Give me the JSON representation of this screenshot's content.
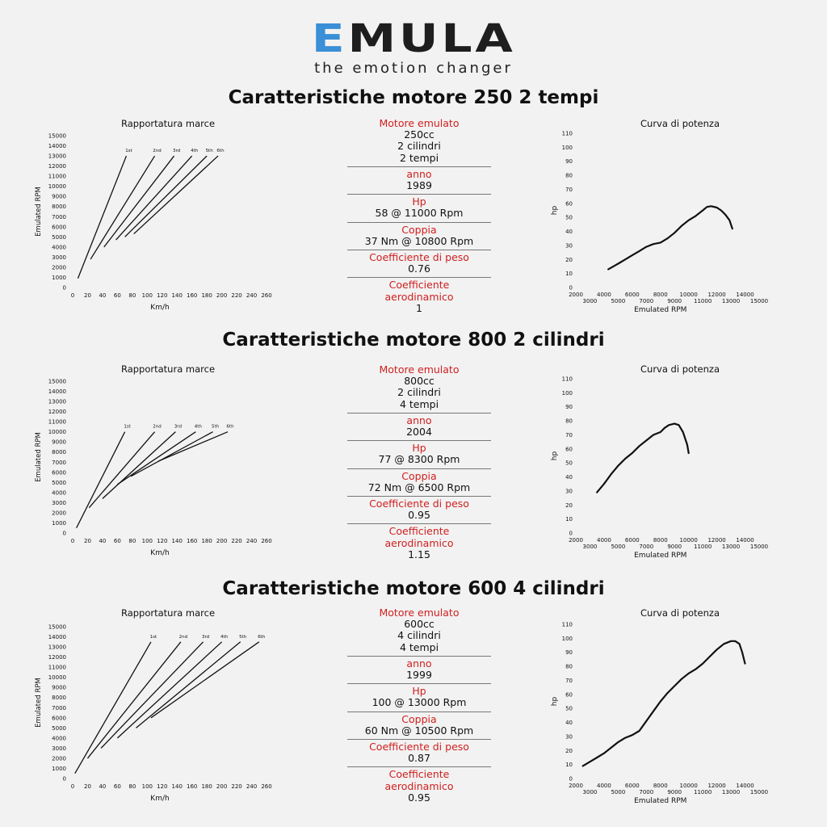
{
  "logo": {
    "brand_e": "E",
    "brand_rest": "MULA",
    "tagline": "the emotion changer"
  },
  "sections": [
    {
      "title": "Caratteristiche motore 250 2 tempi",
      "specs": {
        "motore_label": "Motore emulato",
        "cc": "250cc",
        "cilindri": "2 cilindri",
        "tempi": "2 tempi",
        "anno_label": "anno",
        "anno": "1989",
        "hp_label": "Hp",
        "hp": "58 @ 11000 Rpm",
        "coppia_label": "Coppia",
        "coppia": "37 Nm @ 10800 Rpm",
        "peso_label": "Coefficiente di peso",
        "peso": "0.76",
        "aero_label1": "Coefficiente",
        "aero_label2": "aerodinamico",
        "aero": "1"
      }
    },
    {
      "title": "Caratteristiche motore 800 2 cilindri",
      "specs": {
        "motore_label": "Motore emulato",
        "cc": "800cc",
        "cilindri": "2 cilindri",
        "tempi": "4 tempi",
        "anno_label": "anno",
        "anno": "2004",
        "hp_label": "Hp",
        "hp": "77 @ 8300 Rpm",
        "coppia_label": "Coppia",
        "coppia": "72 Nm @ 6500 Rpm",
        "peso_label": "Coefficiente di peso",
        "peso": "0.95",
        "aero_label1": "Coefficiente",
        "aero_label2": "aerodinamico",
        "aero": "1.15"
      }
    },
    {
      "title": "Caratteristiche motore 600 4 cilindri",
      "specs": {
        "motore_label": "Motore emulato",
        "cc": "600cc",
        "cilindri": "4 cilindri",
        "tempi": "4 tempi",
        "anno_label": "anno",
        "anno": "1999",
        "hp_label": "Hp",
        "hp": "100 @ 13000 Rpm",
        "coppia_label": "Coppia",
        "coppia": "60 Nm @ 10500 Rpm",
        "peso_label": "Coefficiente di peso",
        "peso": "0.87",
        "aero_label1": "Coefficiente",
        "aero_label2": "aerodinamico",
        "aero": "0.95"
      }
    }
  ],
  "colors": {
    "brand_blue": "#3a8fd6",
    "label_red": "#d01f1f",
    "line": "#111111"
  },
  "chart_data": [
    {
      "type": "line",
      "title": "Rapportatura marce",
      "xlabel": "Km/h",
      "ylabel": "Emulated RPM",
      "xlim": [
        0,
        260
      ],
      "ylim": [
        0,
        15000
      ],
      "xticks": [
        "0",
        "20",
        "40",
        "60",
        "80",
        "100",
        "120",
        "140",
        "160",
        "180",
        "200",
        "220",
        "240",
        "260"
      ],
      "yticks": [
        "0",
        "1000",
        "2000",
        "3000",
        "4000",
        "5000",
        "6000",
        "7000",
        "8000",
        "9000",
        "10000",
        "11000",
        "12000",
        "13000",
        "14000",
        "15000"
      ],
      "series": [
        {
          "name": "1st",
          "points": [
            [
              7,
              900
            ],
            [
              72,
              13000
            ]
          ]
        },
        {
          "name": "2nd",
          "points": [
            [
              24,
              2800
            ],
            [
              110,
              13000
            ]
          ]
        },
        {
          "name": "3rd",
          "points": [
            [
              42,
              4000
            ],
            [
              136,
              13000
            ]
          ]
        },
        {
          "name": "4th",
          "points": [
            [
              58,
              4700
            ],
            [
              160,
              13000
            ]
          ]
        },
        {
          "name": "5th",
          "points": [
            [
              70,
              5000
            ],
            [
              180,
              13000
            ]
          ]
        },
        {
          "name": "6th",
          "points": [
            [
              82,
              5300
            ],
            [
              195,
              13000
            ]
          ]
        }
      ],
      "gear_labels": [
        "1st",
        "2nd",
        "3rd",
        "4th",
        "5th",
        "6th"
      ]
    },
    {
      "type": "line",
      "title": "Curva di potenza",
      "xlabel": "Emulated RPM",
      "ylabel": "hp",
      "xlim": [
        2000,
        15000
      ],
      "ylim": [
        0,
        110
      ],
      "xticks": [
        "2000",
        "3000",
        "4000",
        "5000",
        "6000",
        "7000",
        "8000",
        "9000",
        "10000",
        "11000",
        "12000",
        "13000",
        "14000",
        "15000"
      ],
      "yticks": [
        "0",
        "10",
        "20",
        "30",
        "40",
        "50",
        "60",
        "70",
        "80",
        "90",
        "100",
        "110"
      ],
      "series": [
        {
          "x": [
            4300,
            5000,
            5500,
            6000,
            6500,
            7000,
            7500,
            8000,
            8500,
            9000,
            9500,
            10000,
            10500,
            11000,
            11300,
            11600,
            12000,
            12300,
            12600,
            12900,
            13100
          ],
          "y": [
            13,
            17,
            20,
            23,
            26,
            29,
            31,
            32,
            35,
            39,
            44,
            48,
            51,
            55,
            57.5,
            58,
            57,
            55,
            52,
            48,
            42
          ]
        }
      ]
    },
    {
      "type": "line",
      "title": "Rapportatura marce",
      "xlabel": "Km/h",
      "ylabel": "Emulated RPM",
      "xlim": [
        0,
        260
      ],
      "ylim": [
        0,
        15000
      ],
      "xticks": [
        "0",
        "20",
        "40",
        "60",
        "80",
        "100",
        "120",
        "140",
        "160",
        "180",
        "200",
        "220",
        "240",
        "260"
      ],
      "yticks": [
        "0",
        "1000",
        "2000",
        "3000",
        "4000",
        "5000",
        "6000",
        "7000",
        "8000",
        "9000",
        "10000",
        "11000",
        "12000",
        "13000",
        "14000",
        "15000"
      ],
      "series": [
        {
          "name": "1st",
          "points": [
            [
              5,
              500
            ],
            [
              70,
              10000
            ]
          ]
        },
        {
          "name": "2nd",
          "points": [
            [
              22,
              2500
            ],
            [
              110,
              10000
            ]
          ]
        },
        {
          "name": "3rd",
          "points": [
            [
              40,
              3400
            ],
            [
              138,
              10000
            ]
          ]
        },
        {
          "name": "4th",
          "points": [
            [
              60,
              4800
            ],
            [
              165,
              10000
            ]
          ]
        },
        {
          "name": "5th",
          "points": [
            [
              78,
              5600
            ],
            [
              188,
              10000
            ]
          ]
        },
        {
          "name": "6th",
          "points": [
            [
              115,
              7100
            ],
            [
              208,
              10000
            ]
          ]
        }
      ],
      "gear_labels": [
        "1st",
        "2nd",
        "3rd",
        "4th",
        "5th",
        "6th"
      ]
    },
    {
      "type": "line",
      "title": "Curva di potenza",
      "xlabel": "Emulated RPM",
      "ylabel": "hp",
      "xlim": [
        2000,
        15000
      ],
      "ylim": [
        0,
        110
      ],
      "xticks": [
        "2000",
        "3000",
        "4000",
        "5000",
        "6000",
        "7000",
        "8000",
        "9000",
        "10000",
        "11000",
        "12000",
        "13000",
        "14000",
        "15000"
      ],
      "yticks": [
        "0",
        "10",
        "20",
        "30",
        "40",
        "50",
        "60",
        "70",
        "80",
        "90",
        "100",
        "110"
      ],
      "series": [
        {
          "x": [
            3500,
            4000,
            4500,
            5000,
            5500,
            6000,
            6500,
            7000,
            7500,
            8000,
            8300,
            8600,
            9000,
            9300,
            9600,
            9900,
            10000
          ],
          "y": [
            29,
            35,
            42,
            48,
            53,
            57,
            62,
            66,
            70,
            72,
            75,
            77,
            78,
            77,
            72,
            63,
            57
          ]
        }
      ]
    },
    {
      "type": "line",
      "title": "Rapportatura marce",
      "xlabel": "Km/h",
      "ylabel": "Emulated RPM",
      "xlim": [
        0,
        260
      ],
      "ylim": [
        0,
        15000
      ],
      "xticks": [
        "0",
        "20",
        "40",
        "60",
        "80",
        "100",
        "120",
        "140",
        "160",
        "180",
        "200",
        "220",
        "240",
        "260"
      ],
      "yticks": [
        "0",
        "1000",
        "2000",
        "3000",
        "4000",
        "5000",
        "6000",
        "7000",
        "8000",
        "9000",
        "10000",
        "11000",
        "12000",
        "13000",
        "14000",
        "15000"
      ],
      "series": [
        {
          "name": "1st",
          "points": [
            [
              3,
              500
            ],
            [
              105,
              13500
            ]
          ]
        },
        {
          "name": "2nd",
          "points": [
            [
              20,
              2000
            ],
            [
              145,
              13500
            ]
          ]
        },
        {
          "name": "3rd",
          "points": [
            [
              38,
              3000
            ],
            [
              175,
              13500
            ]
          ]
        },
        {
          "name": "4th",
          "points": [
            [
              60,
              4000
            ],
            [
              200,
              13500
            ]
          ]
        },
        {
          "name": "5th",
          "points": [
            [
              85,
              5000
            ],
            [
              225,
              13500
            ]
          ]
        },
        {
          "name": "6th",
          "points": [
            [
              105,
              6000
            ],
            [
              250,
              13500
            ]
          ]
        }
      ],
      "gear_labels": [
        "1st",
        "2nd",
        "3rd",
        "4th",
        "5th",
        "6th"
      ]
    },
    {
      "type": "line",
      "title": "Curva di potenza",
      "xlabel": "Emulated RPM",
      "ylabel": "hp",
      "xlim": [
        2000,
        15000
      ],
      "ylim": [
        0,
        110
      ],
      "xticks": [
        "2000",
        "3000",
        "4000",
        "5000",
        "6000",
        "7000",
        "8000",
        "9000",
        "10000",
        "11000",
        "12000",
        "13000",
        "14000",
        "15000"
      ],
      "yticks": [
        "0",
        "10",
        "20",
        "30",
        "40",
        "50",
        "60",
        "70",
        "80",
        "90",
        "100",
        "110"
      ],
      "series": [
        {
          "x": [
            2500,
            3000,
            3500,
            4000,
            4500,
            5000,
            5500,
            6000,
            6500,
            7000,
            7500,
            8000,
            8500,
            9000,
            9500,
            10000,
            10500,
            11000,
            11500,
            12000,
            12500,
            13000,
            13300,
            13600,
            13800,
            14000
          ],
          "y": [
            9,
            12,
            15,
            18,
            22,
            26,
            29,
            31,
            34,
            41,
            48,
            55,
            61,
            66,
            71,
            75,
            78,
            82,
            87,
            92,
            96,
            98,
            98,
            96,
            90,
            82
          ]
        }
      ]
    }
  ]
}
